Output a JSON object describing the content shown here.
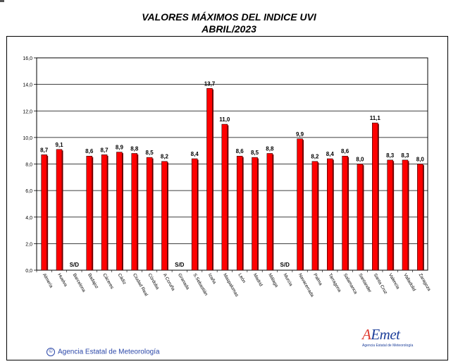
{
  "title": "VALORES MÁXIMOS DEL INDICE UVI",
  "subtitle": "ABRIL/2023",
  "footer": {
    "copyright_symbol": "©",
    "agency": "Agencia Estatal de Meteorología"
  },
  "logo": {
    "word_prefix": "A",
    "word_rest": "Emet",
    "tagline": "Agencia Estatal de Meteorología"
  },
  "colors": {
    "bar": "#ff0000",
    "bar_shadow": "#800000",
    "grid": "#000000",
    "logo": "#1d3f9a"
  },
  "chart_data": {
    "type": "bar",
    "title": "VALORES MÁXIMOS DEL INDICE UVI",
    "subtitle": "ABRIL/2023",
    "categories": [
      "Almería",
      "Huelva",
      "Barcelona",
      "Badajoz",
      "Cáceres",
      "Cádiz",
      "Ciudad Real",
      "Córdoba",
      "A Coruña",
      "Granada",
      "S.Sebastián",
      "Izaña",
      "Maspalomas",
      "León",
      "Madrid",
      "Málaga",
      "Murcia",
      "Navacerrada",
      "Palma",
      "Tarragona",
      "Salamanca",
      "Santander",
      "Santa Cruz",
      "Valencia",
      "Valladolid",
      "Zaragoza"
    ],
    "values": [
      8.7,
      9.1,
      null,
      8.6,
      8.7,
      8.9,
      8.8,
      8.5,
      8.2,
      null,
      8.4,
      13.7,
      11.0,
      8.6,
      8.5,
      8.8,
      null,
      9.9,
      8.2,
      8.4,
      8.6,
      8.0,
      11.1,
      8.3,
      8.3,
      8.0
    ],
    "value_labels": [
      "8,7",
      "9,1",
      "S/D",
      "8,6",
      "8,7",
      "8,9",
      "8,8",
      "8,5",
      "8,2",
      "S/D",
      "8,4",
      "13,7",
      "11,0",
      "8,6",
      "8,5",
      "8,8",
      "S/D",
      "9,9",
      "8,2",
      "8,4",
      "8,6",
      "8,0",
      "11,1",
      "8,3",
      "8,3",
      "8,0"
    ],
    "y_ticks": [
      "0,0",
      "2,0",
      "4,0",
      "6,0",
      "8,0",
      "10,0",
      "12,0",
      "14,0",
      "16,0"
    ],
    "ylim": [
      0,
      16
    ],
    "xlabel": "",
    "ylabel": "",
    "grid": true,
    "legend": "none"
  }
}
